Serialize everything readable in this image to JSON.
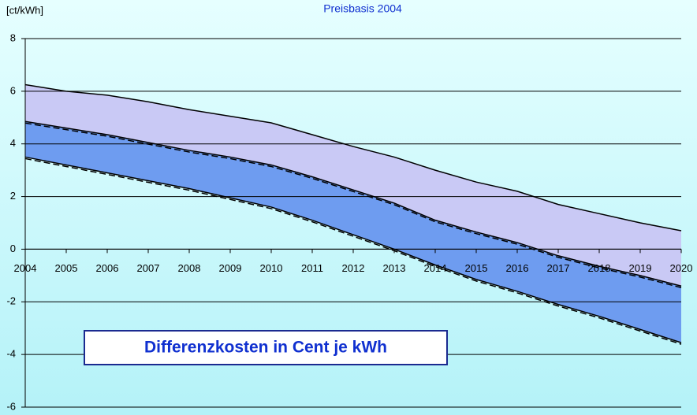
{
  "chart_data": {
    "type": "area",
    "title": "Preisbasis 2004",
    "y_label": "[ct/kWh]",
    "annotation": "Differenzkosten in Cent je kWh",
    "categories": [
      "2004",
      "2005",
      "2006",
      "2007",
      "2008",
      "2009",
      "2010",
      "2011",
      "2012",
      "2013",
      "2014",
      "2015",
      "2016",
      "2017",
      "2018",
      "2019",
      "2020"
    ],
    "series": [
      {
        "color": "#000000",
        "fill": "#c9c9f5",
        "values": [
          6.25,
          6.0,
          5.85,
          5.6,
          5.3,
          5.05,
          4.8,
          4.35,
          3.9,
          3.5,
          3.0,
          2.55,
          2.2,
          1.7,
          1.35,
          1.0,
          0.7
        ]
      },
      {
        "color": "#000000",
        "fill": "#6e9cf0",
        "values": [
          4.85,
          4.6,
          4.35,
          4.05,
          3.75,
          3.5,
          3.2,
          2.75,
          2.25,
          1.75,
          1.1,
          0.65,
          0.25,
          -0.25,
          -0.65,
          -1.0,
          -1.4
        ]
      },
      {
        "color": "#000000",
        "values": [
          3.5,
          3.2,
          2.9,
          2.6,
          2.3,
          1.95,
          1.6,
          1.1,
          0.55,
          0.0,
          -0.6,
          -1.15,
          -1.6,
          -2.1,
          -2.55,
          -3.05,
          -3.55
        ]
      }
    ],
    "ylim": [
      -6,
      8
    ],
    "yticks": [
      -6,
      -4,
      -2,
      0,
      2,
      4,
      6,
      8
    ],
    "grid": true
  }
}
